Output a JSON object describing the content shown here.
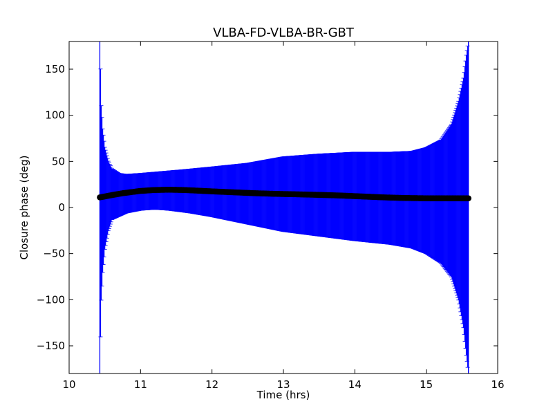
{
  "chart_data": {
    "type": "scatter",
    "title": "VLBA-FD-VLBA-BR-GBT",
    "xlabel": "Time (hrs)",
    "ylabel": "Closure phase (deg)",
    "xlim": [
      10,
      16
    ],
    "ylim": [
      -180,
      180
    ],
    "x_ticks": [
      10,
      11,
      12,
      13,
      14,
      15,
      16
    ],
    "y_ticks": [
      -150,
      -100,
      -50,
      0,
      50,
      100,
      150
    ],
    "x_tick_labels": [
      "10",
      "11",
      "12",
      "13",
      "14",
      "15",
      "16"
    ],
    "y_tick_labels": [
      "−150",
      "−100",
      "−50",
      "0",
      "50",
      "100",
      "150"
    ],
    "grid": false,
    "legend": "none",
    "x_range": [
      10.43,
      15.59
    ],
    "series": [
      {
        "role": "closure-phase",
        "marker": "circle",
        "color": "#000000",
        "x": [
          10.43,
          10.5,
          10.6,
          10.75,
          10.9,
          11.0,
          11.2,
          11.4,
          11.6,
          11.8,
          12.0,
          12.3,
          12.6,
          12.9,
          13.2,
          13.5,
          13.8,
          14.1,
          14.4,
          14.7,
          15.0,
          15.3,
          15.59
        ],
        "y": [
          11,
          12,
          13.5,
          15.5,
          17,
          18,
          19,
          19.3,
          19,
          18.3,
          17.5,
          16.5,
          15.5,
          14.8,
          14.3,
          13.7,
          13,
          12,
          11,
          10.3,
          10,
          10,
          10
        ]
      },
      {
        "role": "error-upper",
        "color": "#0000ff",
        "x": [
          10.43,
          10.44,
          10.45,
          10.47,
          10.5,
          10.55,
          10.6,
          10.7,
          10.8,
          11.0,
          11.3,
          11.6,
          12.0,
          12.5,
          13.0,
          13.5,
          14.0,
          14.5,
          14.8,
          15.0,
          15.2,
          15.35,
          15.45,
          15.52,
          15.56,
          15.59
        ],
        "y": [
          180,
          150,
          110,
          85,
          65,
          50,
          42,
          37,
          36,
          37,
          39,
          41,
          44,
          48,
          55,
          58,
          60,
          60,
          61,
          65,
          73,
          90,
          115,
          140,
          165,
          180
        ]
      },
      {
        "role": "error-lower",
        "color": "#0000ff",
        "x": [
          10.43,
          10.44,
          10.45,
          10.47,
          10.5,
          10.55,
          10.6,
          10.8,
          11.0,
          11.2,
          11.4,
          11.7,
          12.0,
          12.5,
          13.0,
          13.5,
          14.0,
          14.5,
          14.8,
          15.0,
          15.2,
          15.35,
          15.45,
          15.52,
          15.56,
          15.59
        ],
        "y": [
          -180,
          -140,
          -100,
          -70,
          -45,
          -25,
          -13,
          -6,
          -3,
          -2,
          -3,
          -6,
          -10,
          -18,
          -26,
          -31,
          -36,
          -40,
          -44,
          -50,
          -60,
          -75,
          -100,
          -130,
          -160,
          -180
        ]
      }
    ]
  }
}
